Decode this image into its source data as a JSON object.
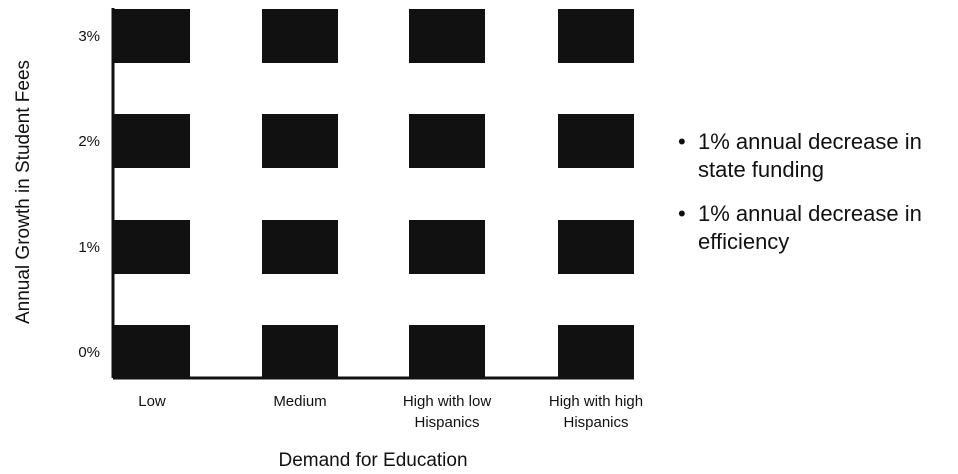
{
  "chart_data": {
    "type": "heatmap",
    "title": "",
    "xlabel": "Demand for Education",
    "ylabel": "Annual Growth in Student Fees",
    "categories": [
      [
        "Low"
      ],
      [
        "Medium"
      ],
      [
        "High with low",
        "Hispanics"
      ],
      [
        "High with high",
        "Hispanics"
      ]
    ],
    "y_categories": [
      "0%",
      "1%",
      "2%",
      "3%"
    ],
    "cells": [
      {
        "x": 0,
        "y": 0,
        "filled": true
      },
      {
        "x": 1,
        "y": 0,
        "filled": true
      },
      {
        "x": 2,
        "y": 0,
        "filled": true
      },
      {
        "x": 3,
        "y": 0,
        "filled": true
      },
      {
        "x": 0,
        "y": 1,
        "filled": true
      },
      {
        "x": 1,
        "y": 1,
        "filled": true
      },
      {
        "x": 2,
        "y": 1,
        "filled": true
      },
      {
        "x": 3,
        "y": 1,
        "filled": true
      },
      {
        "x": 0,
        "y": 2,
        "filled": true
      },
      {
        "x": 1,
        "y": 2,
        "filled": true
      },
      {
        "x": 2,
        "y": 2,
        "filled": true
      },
      {
        "x": 3,
        "y": 2,
        "filled": true
      },
      {
        "x": 0,
        "y": 3,
        "filled": true
      },
      {
        "x": 1,
        "y": 3,
        "filled": true
      },
      {
        "x": 2,
        "y": 3,
        "filled": true
      },
      {
        "x": 3,
        "y": 3,
        "filled": true
      }
    ],
    "cell_color": "#111111",
    "axis_color": "#111111",
    "grid": false
  },
  "legend": {
    "bullet": "•",
    "items": [
      "1% annual decrease in state funding",
      "1% annual decrease in efficiency"
    ]
  }
}
